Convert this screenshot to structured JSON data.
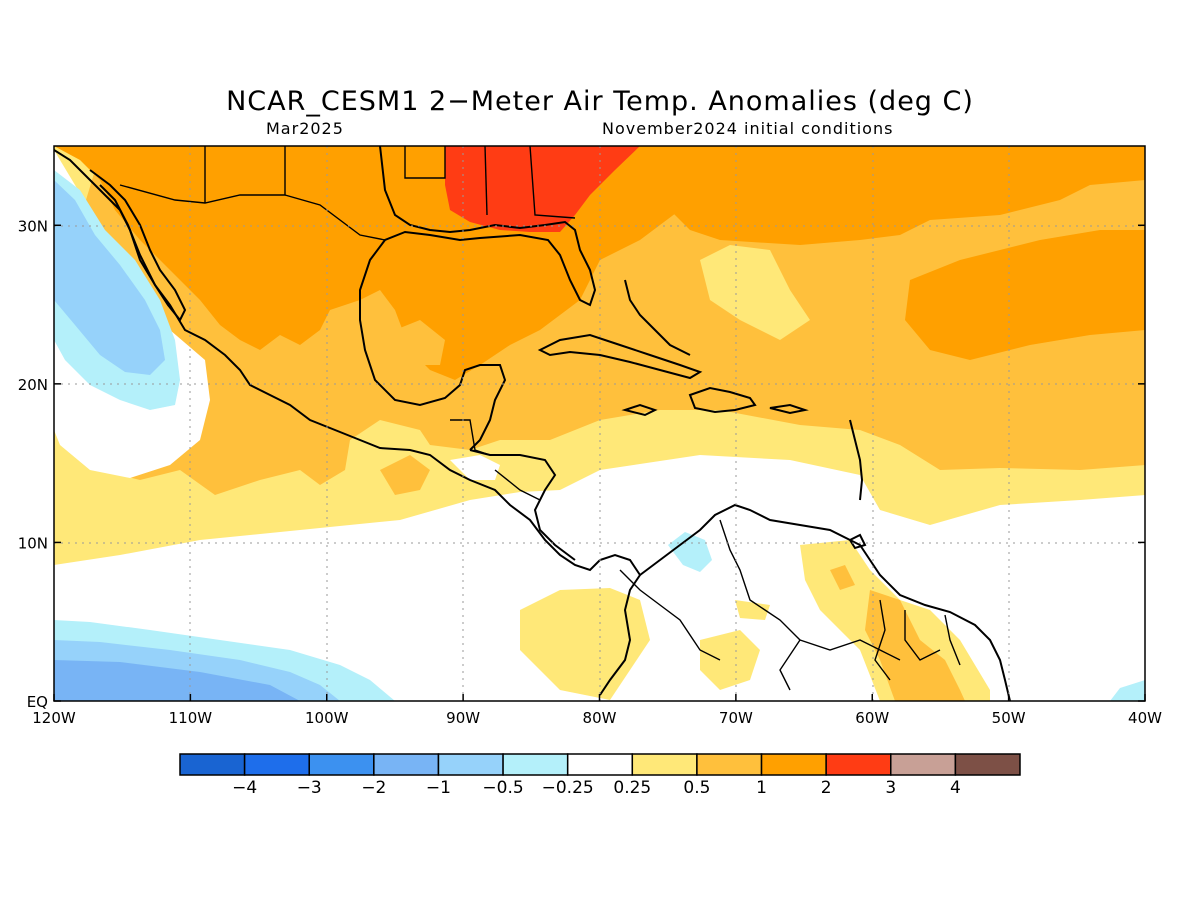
{
  "header": {
    "title": "NCAR_CESM1 2−Meter Air Temp. Anomalies (deg C)",
    "subtitle_left": "Mar2025",
    "subtitle_right": "November2024 initial conditions"
  },
  "map": {
    "lon_range": [
      -120,
      -40
    ],
    "lat_range": [
      0,
      35
    ],
    "lon_ticks": [
      {
        "value": -120,
        "label": "120W"
      },
      {
        "value": -110,
        "label": "110W"
      },
      {
        "value": -100,
        "label": "100W"
      },
      {
        "value": -90,
        "label": "90W"
      },
      {
        "value": -80,
        "label": "80W"
      },
      {
        "value": -70,
        "label": "70W"
      },
      {
        "value": -60,
        "label": "60W"
      },
      {
        "value": -50,
        "label": "50W"
      },
      {
        "value": -40,
        "label": "40W"
      }
    ],
    "lat_ticks": [
      {
        "value": 0,
        "label": "EQ"
      },
      {
        "value": 10,
        "label": "10N"
      },
      {
        "value": 20,
        "label": "20N"
      },
      {
        "value": 30,
        "label": "30N"
      }
    ],
    "grid": "dotted"
  },
  "colorbar": {
    "colors": [
      "#1964d2",
      "#1e6eeb",
      "#3c91f0",
      "#78b4f5",
      "#96d2fa",
      "#b4f0fa",
      "#ffffff",
      "#ffe878",
      "#ffc03c",
      "#ffa000",
      "#ff3c14",
      "#c8a096",
      "#7d5046"
    ],
    "labels": [
      "−4",
      "−3",
      "−2",
      "−1",
      "−0.5",
      "−0.25",
      "0.25",
      "0.5",
      "1",
      "2",
      "3",
      "4"
    ]
  }
}
